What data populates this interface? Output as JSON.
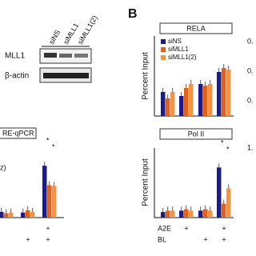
{
  "blot": {
    "lanes": [
      "siNS",
      "siMLL1",
      "siMLL1(2)"
    ],
    "rows": [
      "MLL1",
      "β-actin"
    ]
  },
  "panel_letter": "B",
  "legend": [
    {
      "name": "siNS",
      "color": "#1b1b8a"
    },
    {
      "name": "siMLL1",
      "color": "#e35f1c"
    },
    {
      "name": "siMLL1(2)",
      "color": "#f5933f"
    }
  ],
  "plots": [
    {
      "title": "RE-qPCR",
      "y_label_fragment": "z)",
      "series": [
        [
          0.08,
          0.07,
          0.72
        ],
        [
          0.06,
          0.1,
          0.45
        ],
        [
          0.07,
          0.08,
          0.44
        ]
      ],
      "stars": [
        "*",
        "*"
      ]
    },
    {
      "title": "RELA",
      "y_label": "Percent Input",
      "series": [
        [
          0.3,
          0.25,
          0.4,
          0.55
        ],
        [
          0.22,
          0.35,
          0.38,
          0.6
        ],
        [
          0.3,
          0.4,
          0.4,
          0.58
        ]
      ],
      "right_ticks": [
        "0.",
        "0.",
        "0."
      ]
    },
    {
      "title": "Pol II",
      "y_label": "Percent Input",
      "series": [
        [
          0.08,
          0.1,
          0.1,
          0.72
        ],
        [
          0.1,
          0.12,
          0.12,
          0.2
        ],
        [
          0.1,
          0.1,
          0.1,
          0.42
        ]
      ],
      "stars": [
        "*",
        "*"
      ],
      "right_ticks": [
        "1."
      ]
    }
  ],
  "treatments": {
    "a2e": "A2E",
    "bl": "BL",
    "plus": "+"
  }
}
